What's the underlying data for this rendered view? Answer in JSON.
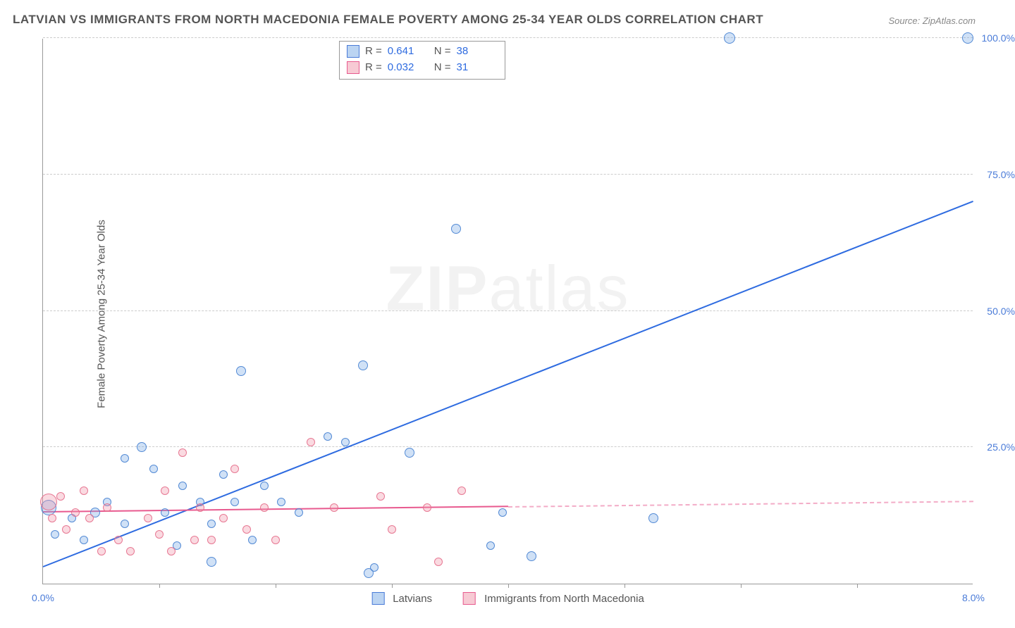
{
  "title": "LATVIAN VS IMMIGRANTS FROM NORTH MACEDONIA FEMALE POVERTY AMONG 25-34 YEAR OLDS CORRELATION CHART",
  "source": "Source: ZipAtlas.com",
  "y_axis_label": "Female Poverty Among 25-34 Year Olds",
  "watermark_bold": "ZIP",
  "watermark_rest": "atlas",
  "chart": {
    "type": "scatter",
    "xlim": [
      0,
      8
    ],
    "ylim": [
      0,
      100
    ],
    "x_ticks": [
      0.0,
      8.0
    ],
    "x_tick_labels": [
      "0.0%",
      "8.0%"
    ],
    "x_minor_ticks": [
      1,
      2,
      3,
      4,
      5,
      6,
      7
    ],
    "y_ticks": [
      25,
      50,
      75,
      100
    ],
    "y_tick_labels": [
      "25.0%",
      "50.0%",
      "75.0%",
      "100.0%"
    ],
    "plot_bg": "#ffffff",
    "grid_color": "#cccccc",
    "series": [
      {
        "name": "Latvians",
        "color_fill": "rgba(120,170,230,0.35)",
        "color_stroke": "#4a7bd8",
        "marker": "circle",
        "legend_label": "Latvians",
        "r_value": "0.641",
        "n_value": "38",
        "trend": {
          "x0": 0,
          "y0": 3,
          "x1": 8,
          "y1": 70,
          "color": "#2e6be0",
          "width": 2.5,
          "style": "solid"
        },
        "points": [
          {
            "x": 0.05,
            "y": 14,
            "s": 22
          },
          {
            "x": 0.1,
            "y": 9,
            "s": 12
          },
          {
            "x": 0.25,
            "y": 12,
            "s": 12
          },
          {
            "x": 0.35,
            "y": 8,
            "s": 12
          },
          {
            "x": 0.45,
            "y": 13,
            "s": 14
          },
          {
            "x": 0.55,
            "y": 15,
            "s": 12
          },
          {
            "x": 0.7,
            "y": 23,
            "s": 12
          },
          {
            "x": 0.7,
            "y": 11,
            "s": 12
          },
          {
            "x": 0.85,
            "y": 25,
            "s": 14
          },
          {
            "x": 0.95,
            "y": 21,
            "s": 12
          },
          {
            "x": 1.05,
            "y": 13,
            "s": 12
          },
          {
            "x": 1.15,
            "y": 7,
            "s": 12
          },
          {
            "x": 1.2,
            "y": 18,
            "s": 12
          },
          {
            "x": 1.35,
            "y": 15,
            "s": 12
          },
          {
            "x": 1.45,
            "y": 11,
            "s": 12
          },
          {
            "x": 1.45,
            "y": 4,
            "s": 14
          },
          {
            "x": 1.55,
            "y": 20,
            "s": 12
          },
          {
            "x": 1.65,
            "y": 15,
            "s": 12
          },
          {
            "x": 1.7,
            "y": 39,
            "s": 14
          },
          {
            "x": 1.8,
            "y": 8,
            "s": 12
          },
          {
            "x": 1.9,
            "y": 18,
            "s": 12
          },
          {
            "x": 2.05,
            "y": 15,
            "s": 12
          },
          {
            "x": 2.2,
            "y": 13,
            "s": 12
          },
          {
            "x": 2.45,
            "y": 27,
            "s": 12
          },
          {
            "x": 2.6,
            "y": 26,
            "s": 12
          },
          {
            "x": 2.75,
            "y": 40,
            "s": 14
          },
          {
            "x": 2.8,
            "y": 2,
            "s": 14
          },
          {
            "x": 2.85,
            "y": 3,
            "s": 12
          },
          {
            "x": 3.15,
            "y": 24,
            "s": 14
          },
          {
            "x": 3.55,
            "y": 65,
            "s": 14
          },
          {
            "x": 3.85,
            "y": 7,
            "s": 12
          },
          {
            "x": 3.95,
            "y": 13,
            "s": 12
          },
          {
            "x": 4.2,
            "y": 5,
            "s": 14
          },
          {
            "x": 5.25,
            "y": 12,
            "s": 14
          },
          {
            "x": 5.9,
            "y": 100,
            "s": 16
          },
          {
            "x": 7.95,
            "y": 100,
            "s": 16
          }
        ]
      },
      {
        "name": "Immigrants from North Macedonia",
        "color_fill": "rgba(240,150,170,0.35)",
        "color_stroke": "#e85a8f",
        "marker": "circle",
        "legend_label": "Immigrants from North Macedonia",
        "r_value": "0.032",
        "n_value": "31",
        "trend": {
          "x0": 0,
          "y0": 13,
          "x1": 4,
          "y1": 14,
          "extends_dashed_to": 8,
          "color": "#e85a8f",
          "width": 2,
          "style": "solid_then_dashed"
        },
        "points": [
          {
            "x": 0.05,
            "y": 15,
            "s": 24
          },
          {
            "x": 0.08,
            "y": 12,
            "s": 12
          },
          {
            "x": 0.15,
            "y": 16,
            "s": 12
          },
          {
            "x": 0.2,
            "y": 10,
            "s": 12
          },
          {
            "x": 0.28,
            "y": 13,
            "s": 12
          },
          {
            "x": 0.35,
            "y": 17,
            "s": 12
          },
          {
            "x": 0.4,
            "y": 12,
            "s": 12
          },
          {
            "x": 0.5,
            "y": 6,
            "s": 12
          },
          {
            "x": 0.55,
            "y": 14,
            "s": 12
          },
          {
            "x": 0.65,
            "y": 8,
            "s": 12
          },
          {
            "x": 0.75,
            "y": 6,
            "s": 12
          },
          {
            "x": 0.9,
            "y": 12,
            "s": 12
          },
          {
            "x": 1.0,
            "y": 9,
            "s": 12
          },
          {
            "x": 1.05,
            "y": 17,
            "s": 12
          },
          {
            "x": 1.1,
            "y": 6,
            "s": 12
          },
          {
            "x": 1.2,
            "y": 24,
            "s": 12
          },
          {
            "x": 1.3,
            "y": 8,
            "s": 12
          },
          {
            "x": 1.35,
            "y": 14,
            "s": 12
          },
          {
            "x": 1.45,
            "y": 8,
            "s": 12
          },
          {
            "x": 1.55,
            "y": 12,
            "s": 12
          },
          {
            "x": 1.65,
            "y": 21,
            "s": 12
          },
          {
            "x": 1.75,
            "y": 10,
            "s": 12
          },
          {
            "x": 1.9,
            "y": 14,
            "s": 12
          },
          {
            "x": 2.0,
            "y": 8,
            "s": 12
          },
          {
            "x": 2.3,
            "y": 26,
            "s": 12
          },
          {
            "x": 2.5,
            "y": 14,
            "s": 12
          },
          {
            "x": 2.9,
            "y": 16,
            "s": 12
          },
          {
            "x": 3.0,
            "y": 10,
            "s": 12
          },
          {
            "x": 3.3,
            "y": 14,
            "s": 12
          },
          {
            "x": 3.4,
            "y": 4,
            "s": 12
          },
          {
            "x": 3.6,
            "y": 17,
            "s": 12
          }
        ]
      }
    ]
  },
  "stats_box": {
    "rows": [
      {
        "swatch": "blue",
        "r_label": "R  = ",
        "r": "0.641",
        "n_label": "N  = ",
        "n": "38"
      },
      {
        "swatch": "pink",
        "r_label": "R  = ",
        "r": "0.032",
        "n_label": "N  = ",
        "n": "31"
      }
    ]
  },
  "bottom_legend": {
    "items": [
      {
        "swatch": "blue",
        "label": "Latvians"
      },
      {
        "swatch": "pink",
        "label": "Immigrants from North Macedonia"
      }
    ]
  }
}
